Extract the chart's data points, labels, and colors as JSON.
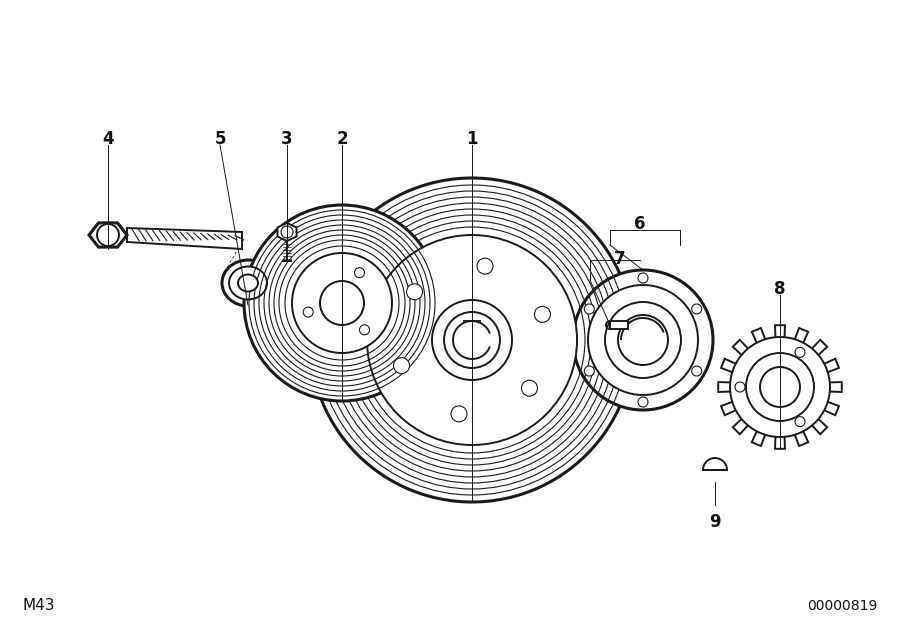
{
  "bg_color": "#ffffff",
  "line_color": "#1a1a1a",
  "label_color": "#111111",
  "bottom_left_text": "M43",
  "bottom_right_text": "00000819",
  "lw": 1.4,
  "lw_thick": 2.2,
  "lw_thin": 0.8
}
